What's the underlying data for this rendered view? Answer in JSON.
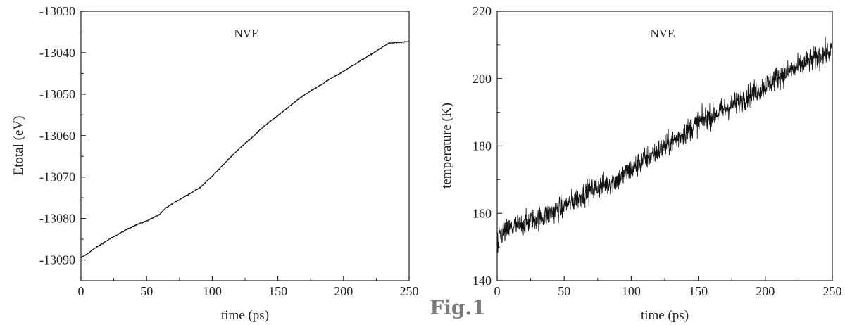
{
  "figure_label": "Fig.1",
  "chart_data": [
    {
      "type": "line",
      "title": "",
      "annotation": "NVE",
      "xlabel": "time (ps)",
      "ylabel": "Etotal (eV)",
      "xlim": [
        0,
        250
      ],
      "ylim": [
        -13095,
        -13030
      ],
      "xticks": [
        0,
        50,
        100,
        150,
        200,
        250
      ],
      "yticks": [
        -13030,
        -13040,
        -13050,
        -13060,
        -13070,
        -13080,
        -13090
      ],
      "xtick_labels": [
        "0",
        "50",
        "100",
        "150",
        "200",
        "250"
      ],
      "ytick_labels": [
        "-13030",
        "-13040",
        "-13050",
        "-13060",
        "-13070",
        "-13080",
        "-13090"
      ],
      "grid": false,
      "series": [
        {
          "x": [
            0,
            5,
            10,
            20,
            30,
            40,
            50,
            60,
            65,
            70,
            80,
            90,
            100,
            110,
            120,
            130,
            140,
            150,
            160,
            170,
            180,
            190,
            200,
            210,
            220,
            230,
            235,
            240,
            250
          ],
          "y": [
            -13089.5,
            -13088.5,
            -13087.3,
            -13085.3,
            -13083.5,
            -13081.8,
            -13080.6,
            -13079.0,
            -13077.4,
            -13076.4,
            -13074.5,
            -13072.7,
            -13069.8,
            -13066.5,
            -13063.3,
            -13060.5,
            -13057.6,
            -13055.2,
            -13052.6,
            -13050.2,
            -13048.3,
            -13046.3,
            -13044.5,
            -13042.5,
            -13040.6,
            -13038.6,
            -13037.6,
            -13037.6,
            -13037.3
          ]
        }
      ]
    },
    {
      "type": "line",
      "title": "",
      "annotation": "NVE",
      "xlabel": "time (ps)",
      "ylabel": "temperature (K)",
      "xlim": [
        0,
        250
      ],
      "ylim": [
        140,
        220
      ],
      "xticks": [
        0,
        50,
        100,
        150,
        200,
        250
      ],
      "yticks": [
        140,
        160,
        180,
        200,
        220
      ],
      "xtick_labels": [
        "0",
        "50",
        "100",
        "150",
        "200",
        "250"
      ],
      "ytick_labels": [
        "140",
        "160",
        "180",
        "200",
        "220"
      ],
      "grid": false,
      "series": [
        {
          "x": [
            0,
            10,
            20,
            30,
            40,
            50,
            60,
            70,
            80,
            90,
            100,
            110,
            120,
            130,
            140,
            150,
            160,
            170,
            180,
            190,
            200,
            210,
            220,
            230,
            240,
            250
          ],
          "y": [
            153,
            155.5,
            157,
            158.5,
            160,
            162,
            164.5,
            167,
            168.5,
            170,
            173,
            176,
            178.5,
            181,
            184,
            187,
            189,
            191,
            193,
            195.5,
            198,
            200.5,
            202.5,
            204.5,
            206.5,
            208.5
          ],
          "noise_amplitude_K": 3.5
        }
      ]
    }
  ]
}
